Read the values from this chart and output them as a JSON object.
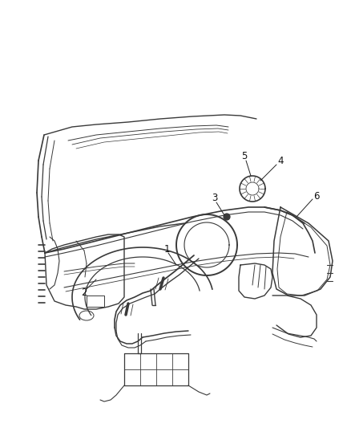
{
  "background_color": "#ffffff",
  "line_color": "#3a3a3a",
  "label_color": "#111111",
  "fig_width": 4.38,
  "fig_height": 5.33,
  "dpi": 100,
  "label_fontsize": 8.5
}
